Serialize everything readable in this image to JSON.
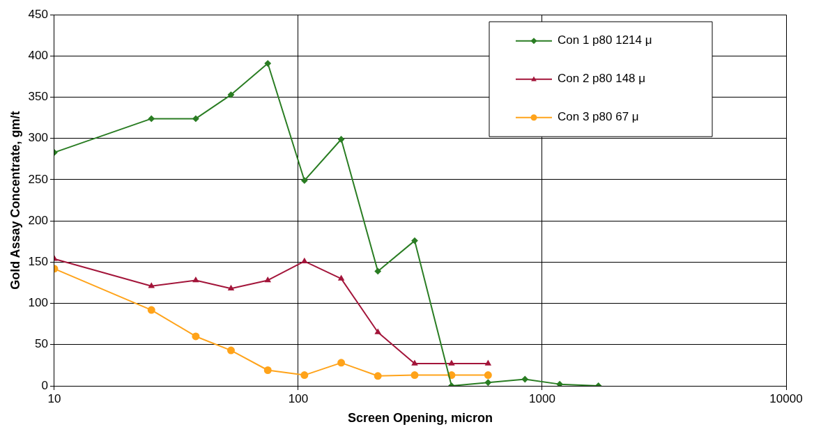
{
  "chart_data": {
    "type": "line",
    "xlabel": "Screen Opening, micron",
    "ylabel": "Gold Assay Concentrate, gm/t",
    "log": "x",
    "xlim": [
      10,
      10000
    ],
    "xticks": [
      10,
      100,
      1000,
      10000
    ],
    "ylim": [
      0,
      450
    ],
    "yticks": [
      0,
      50,
      100,
      150,
      200,
      250,
      300,
      350,
      400,
      450
    ],
    "grid": true,
    "legend": "top right",
    "line_style": "solid",
    "series": [
      {
        "name": "Con 1 p80 1214 μ",
        "color": "#2a7d23",
        "marker": "diamond",
        "x": [
          10,
          25,
          38,
          53,
          75,
          106,
          150,
          212,
          300,
          425,
          600,
          850,
          1180,
          1700
        ],
        "values": [
          283,
          324,
          324,
          353,
          391,
          249,
          299,
          139,
          176,
          0,
          4,
          8,
          2,
          0
        ]
      },
      {
        "name": "Con 2 p80 148 μ",
        "color": "#a3153a",
        "marker": "triangle",
        "x": [
          10,
          25,
          38,
          53,
          75,
          106,
          150,
          212,
          300,
          425,
          600
        ],
        "values": [
          154,
          121,
          128,
          118,
          128,
          151,
          130,
          65,
          27,
          27,
          27
        ]
      },
      {
        "name": "Con 3 p80 67 μ",
        "color": "#ffa31a",
        "marker": "circle",
        "x": [
          10,
          25,
          38,
          53,
          75,
          106,
          150,
          212,
          300,
          425,
          600
        ],
        "values": [
          142,
          92,
          60,
          43,
          19,
          13,
          28,
          12,
          13,
          13,
          13
        ]
      }
    ]
  }
}
